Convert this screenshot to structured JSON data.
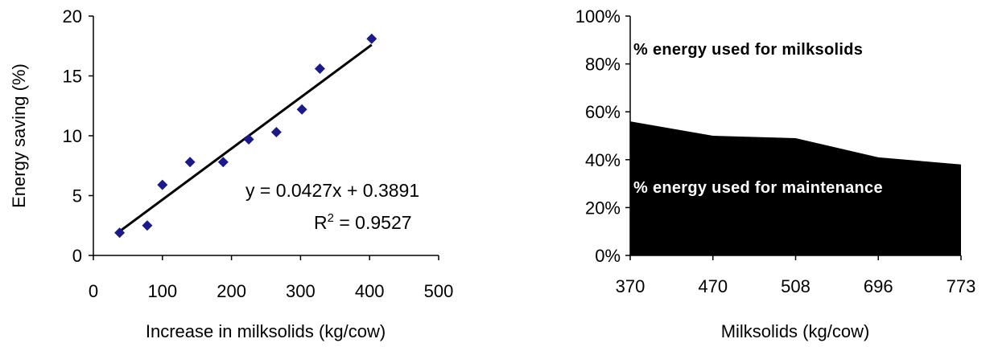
{
  "chart_data": [
    {
      "type": "scatter",
      "xlabel": "Increase in milksolids (kg/cow)",
      "ylabel": "Energy saving (%)",
      "xlim": [
        0,
        500
      ],
      "ylim": [
        0,
        20
      ],
      "x_ticks": [
        "0",
        "100",
        "200",
        "300",
        "400",
        "500"
      ],
      "y_ticks": [
        "0",
        "5",
        "10",
        "15",
        "20"
      ],
      "grid": false,
      "marker_color": "#1a1a8c",
      "points": [
        {
          "x": 38,
          "y": 1.9
        },
        {
          "x": 78,
          "y": 2.5
        },
        {
          "x": 100,
          "y": 5.9
        },
        {
          "x": 140,
          "y": 7.8
        },
        {
          "x": 188,
          "y": 7.8
        },
        {
          "x": 225,
          "y": 9.7
        },
        {
          "x": 265,
          "y": 10.3
        },
        {
          "x": 302,
          "y": 12.2
        },
        {
          "x": 328,
          "y": 15.6
        },
        {
          "x": 403,
          "y": 18.1
        }
      ],
      "trendline": {
        "slope": 0.0427,
        "intercept": 0.3891,
        "x_from": 38,
        "x_to": 403
      },
      "equation_label": "y = 0.0427x + 0.3891",
      "r2_prefix": "R",
      "r2_sup": "2",
      "r2_value": " = 0.9527"
    },
    {
      "type": "area",
      "xlabel": "Milksolids (kg/cow)",
      "categories": [
        "370",
        "470",
        "508",
        "696",
        "773"
      ],
      "y_ticks": [
        "0%",
        "20%",
        "40%",
        "60%",
        "80%",
        "100%"
      ],
      "ylim": [
        0,
        100
      ],
      "grid": false,
      "series": [
        {
          "name": "% energy used for maintenance",
          "values": [
            56,
            50,
            49,
            41,
            38
          ],
          "color": "#000000"
        },
        {
          "name": "% energy used for milksolids",
          "values": [
            44,
            50,
            51,
            59,
            62
          ],
          "color": "#ffffff"
        }
      ]
    }
  ]
}
